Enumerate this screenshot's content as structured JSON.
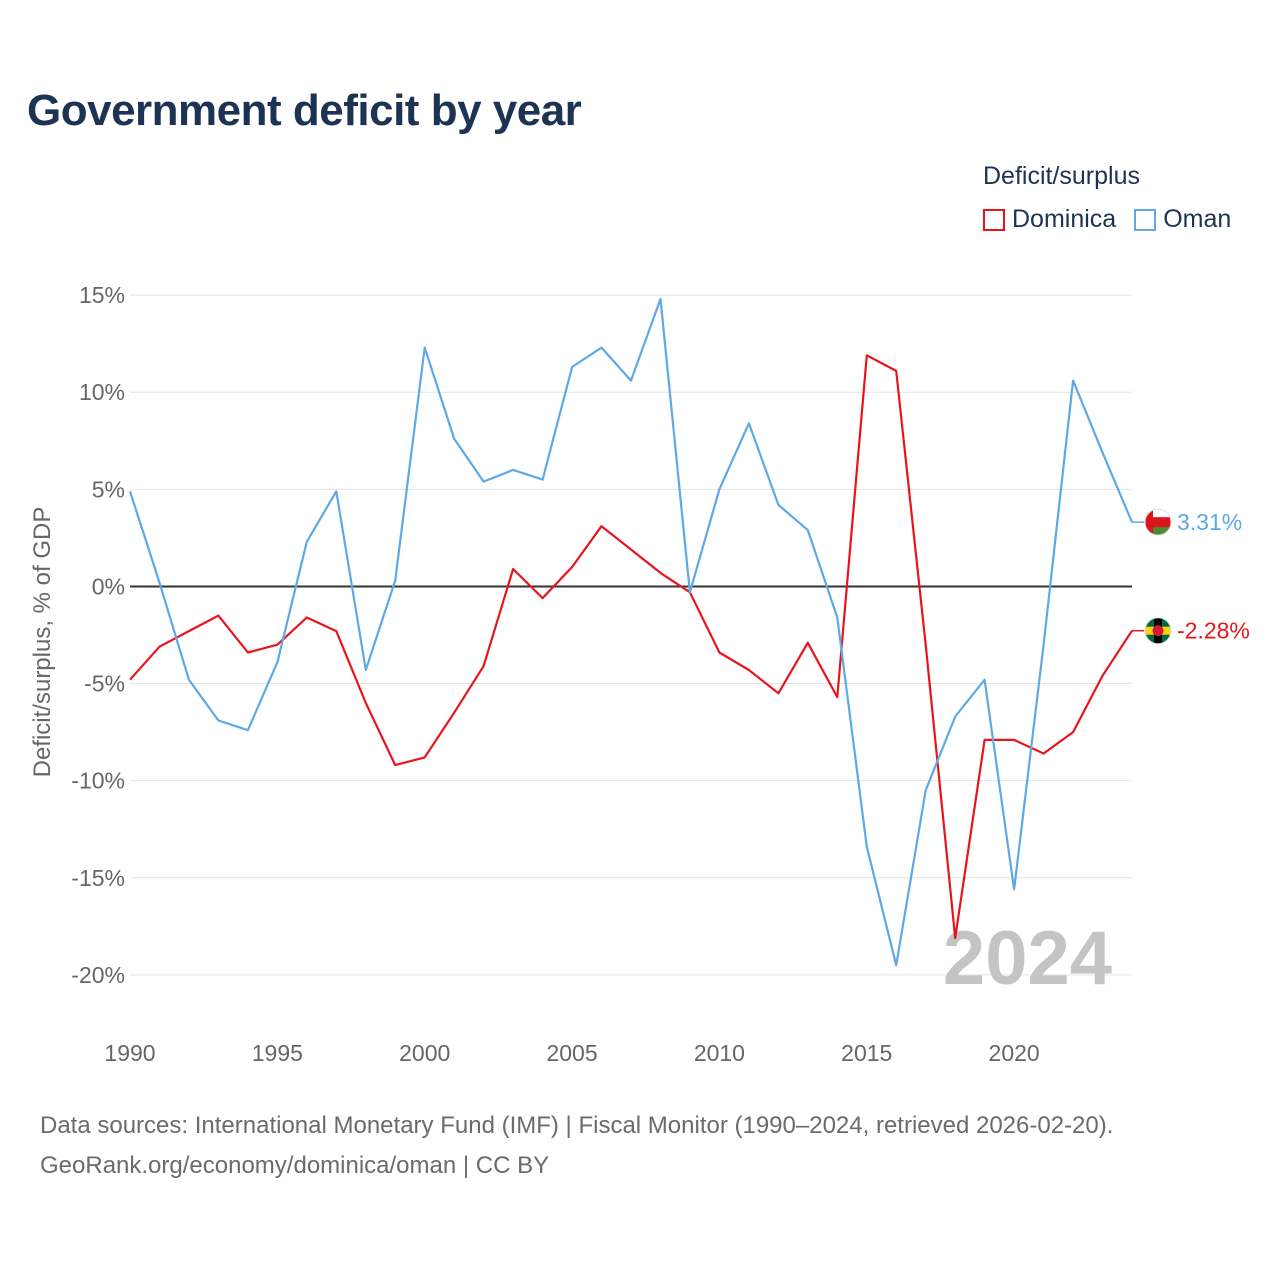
{
  "title": "Government deficit by year",
  "legend": {
    "title": "Deficit/surplus",
    "items": [
      {
        "name": "Dominica",
        "color": "#e8141c"
      },
      {
        "name": "Oman",
        "color": "#5fa8e6"
      }
    ]
  },
  "footer": {
    "line1": "Data sources: International Monetary Fund (IMF) | Fiscal Monitor (1990–2024, retrieved 2026-02-20).",
    "line2": "GeoRank.org/economy/dominica/oman | CC BY"
  },
  "chart_data": {
    "type": "line",
    "title": "Government deficit by year",
    "ylabel": "Deficit/surplus, % of GDP",
    "xlabel": "",
    "xlim": [
      1990,
      2024
    ],
    "ylim": [
      -21.5,
      16.5
    ],
    "x_ticks": [
      1990,
      1995,
      2000,
      2005,
      2010,
      2015,
      2020
    ],
    "y_ticks": [
      15,
      10,
      5,
      0,
      -5,
      -10,
      -15,
      -20
    ],
    "y_tick_labels": [
      "15%",
      "10%",
      "5%",
      "0%",
      "-5%",
      "-10%",
      "-15%",
      "-20%"
    ],
    "grid": true,
    "watermark_year": "2024",
    "x": [
      1990,
      1991,
      1992,
      1993,
      1994,
      1995,
      1996,
      1997,
      1998,
      1999,
      2000,
      2001,
      2002,
      2003,
      2004,
      2005,
      2006,
      2007,
      2008,
      2009,
      2010,
      2011,
      2012,
      2013,
      2014,
      2015,
      2016,
      2017,
      2018,
      2019,
      2020,
      2021,
      2022,
      2023,
      2024
    ],
    "series": [
      {
        "name": "Dominica",
        "color": "#e8141c",
        "end_label": "-2.28%",
        "values": [
          -4.8,
          -3.1,
          -2.3,
          -1.5,
          -3.4,
          -3.0,
          -1.6,
          -2.3,
          -6.0,
          -9.2,
          -8.8,
          -6.5,
          -4.1,
          0.9,
          -0.6,
          1.0,
          3.1,
          1.9,
          0.7,
          -0.3,
          -3.4,
          -4.3,
          -5.5,
          -2.9,
          -5.7,
          11.9,
          11.1,
          -3.0,
          -18.1,
          -7.9,
          -7.9,
          -8.6,
          -7.5,
          -4.6,
          -2.28
        ]
      },
      {
        "name": "Oman",
        "color": "#5fa8e6",
        "end_label": "3.31%",
        "values": [
          4.9,
          0.2,
          -4.8,
          -6.9,
          -7.4,
          -3.9,
          2.3,
          4.9,
          -4.3,
          0.3,
          12.3,
          7.6,
          5.4,
          6.0,
          5.5,
          11.3,
          12.3,
          10.6,
          14.8,
          -0.3,
          5.0,
          8.4,
          4.2,
          2.9,
          -1.6,
          -13.4,
          -19.5,
          -10.5,
          -6.7,
          -4.8,
          -15.6,
          -3.0,
          10.6,
          6.9,
          3.31
        ]
      }
    ]
  }
}
